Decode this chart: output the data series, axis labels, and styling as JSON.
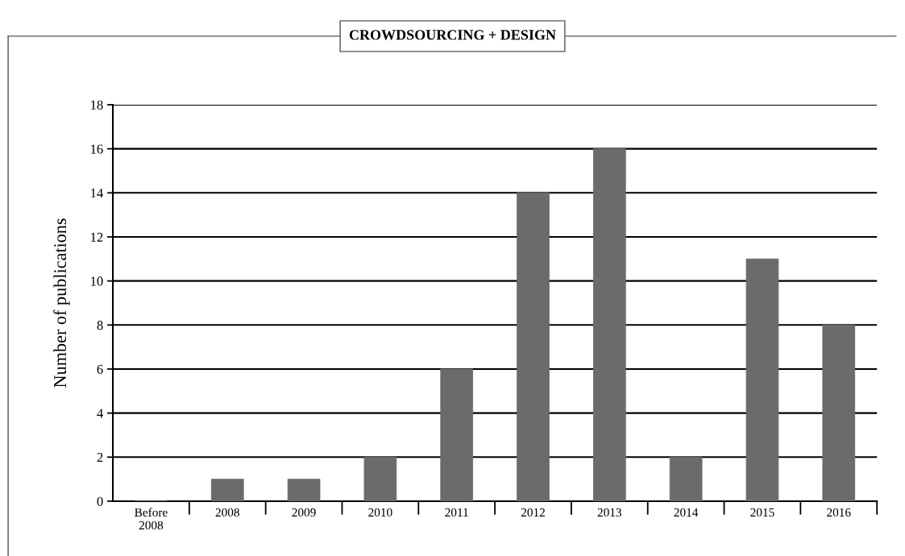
{
  "chart_data": {
    "type": "bar",
    "title": "CROWDSOURCING + DESIGN",
    "ylabel": "Number of publications",
    "categories": [
      "Before\n2008",
      "2008",
      "2009",
      "2010",
      "2011",
      "2012",
      "2013",
      "2014",
      "2015",
      "2016"
    ],
    "values": [
      0,
      1,
      1,
      2,
      6,
      14,
      16,
      2,
      11,
      8
    ],
    "color": "#6b6b6d",
    "ylim": [
      0,
      18
    ],
    "yticks": [
      0,
      2,
      4,
      6,
      8,
      10,
      12,
      14,
      16,
      18
    ],
    "grid": "y"
  }
}
